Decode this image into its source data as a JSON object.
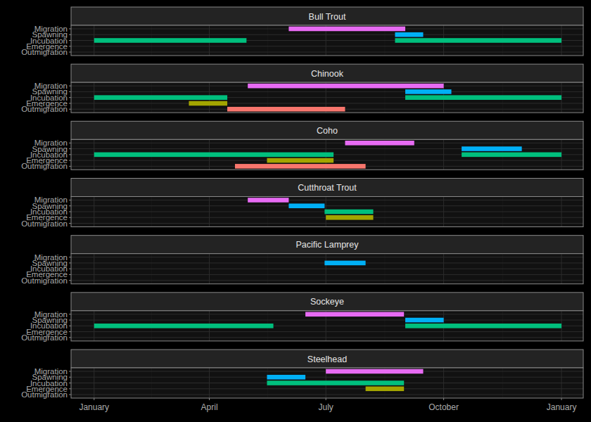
{
  "chart_data": {
    "type": "gantt",
    "categories": [
      "Migration",
      "Spawning",
      "Incubation",
      "Emergence",
      "Outmigration"
    ],
    "colors": [
      "#E76BF3",
      "#00B0F6",
      "#00BF7D",
      "#A3A500",
      "#F8766D"
    ],
    "xlim": [
      -17,
      383
    ],
    "xticks": [
      {
        "value": 1,
        "label": "January"
      },
      {
        "value": 91,
        "label": "April"
      },
      {
        "value": 182,
        "label": "July"
      },
      {
        "value": 274,
        "label": "October"
      },
      {
        "value": 366,
        "label": "January"
      }
    ],
    "grid": true,
    "panels": [
      {
        "title": "Bull Trout",
        "bars": [
          {
            "category": "Migration",
            "start": 153,
            "end": 244
          },
          {
            "category": "Spawning",
            "start": 236,
            "end": 258
          },
          {
            "category": "Incubation",
            "start": 1,
            "end": 120
          },
          {
            "category": "Incubation",
            "start": 236,
            "end": 366
          }
        ]
      },
      {
        "title": "Chinook",
        "bars": [
          {
            "category": "Migration",
            "start": 121,
            "end": 274
          },
          {
            "category": "Spawning",
            "start": 244,
            "end": 280
          },
          {
            "category": "Incubation",
            "start": 1,
            "end": 105
          },
          {
            "category": "Incubation",
            "start": 244,
            "end": 366
          },
          {
            "category": "Emergence",
            "start": 75,
            "end": 105
          },
          {
            "category": "Outmigration",
            "start": 105,
            "end": 197
          }
        ]
      },
      {
        "title": "Coho",
        "bars": [
          {
            "category": "Migration",
            "start": 197,
            "end": 251
          },
          {
            "category": "Spawning",
            "start": 288,
            "end": 335
          },
          {
            "category": "Incubation",
            "start": 1,
            "end": 188
          },
          {
            "category": "Incubation",
            "start": 288,
            "end": 366
          },
          {
            "category": "Emergence",
            "start": 136,
            "end": 188
          },
          {
            "category": "Outmigration",
            "start": 111,
            "end": 213
          }
        ]
      },
      {
        "title": "Cutthroat Trout",
        "bars": [
          {
            "category": "Migration",
            "start": 121,
            "end": 153
          },
          {
            "category": "Spawning",
            "start": 153,
            "end": 181
          },
          {
            "category": "Incubation",
            "start": 181,
            "end": 219
          },
          {
            "category": "Emergence",
            "start": 182,
            "end": 219
          }
        ]
      },
      {
        "title": "Pacific Lamprey",
        "bars": [
          {
            "category": "Spawning",
            "start": 181,
            "end": 213
          }
        ]
      },
      {
        "title": "Sockeye",
        "bars": [
          {
            "category": "Migration",
            "start": 166,
            "end": 243
          },
          {
            "category": "Spawning",
            "start": 244,
            "end": 274
          },
          {
            "category": "Incubation",
            "start": 1,
            "end": 141
          },
          {
            "category": "Incubation",
            "start": 244,
            "end": 366
          }
        ]
      },
      {
        "title": "Steelhead",
        "bars": [
          {
            "category": "Migration",
            "start": 182,
            "end": 258
          },
          {
            "category": "Spawning",
            "start": 136,
            "end": 166
          },
          {
            "category": "Incubation",
            "start": 136,
            "end": 243
          },
          {
            "category": "Emergence",
            "start": 213,
            "end": 243
          }
        ]
      }
    ]
  }
}
